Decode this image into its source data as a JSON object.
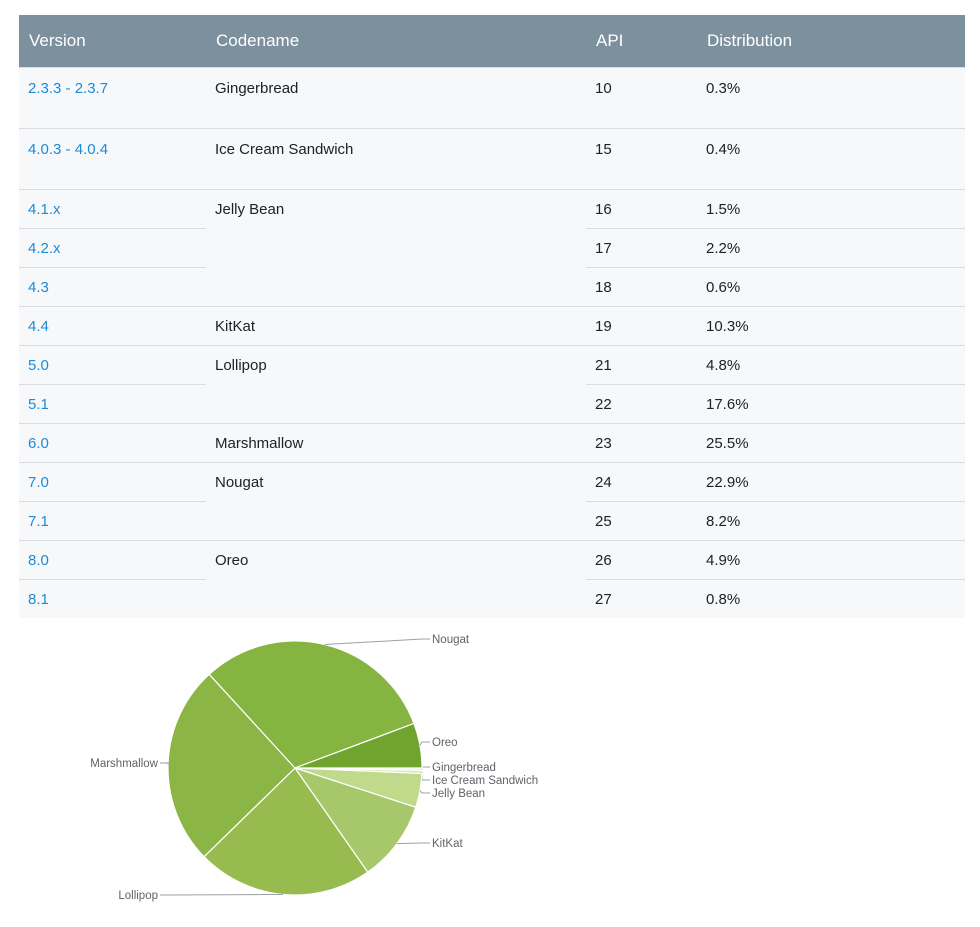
{
  "table": {
    "headers": [
      "Version",
      "Codename",
      "API",
      "Distribution"
    ],
    "groups": [
      {
        "codename": "Gingerbread",
        "rows": [
          {
            "version": "2.3.3 - 2.3.7",
            "api": "10",
            "distribution": "0.3%"
          }
        ]
      },
      {
        "codename": "Ice Cream Sandwich",
        "rows": [
          {
            "version": "4.0.3 - 4.0.4",
            "api": "15",
            "distribution": "0.4%"
          }
        ]
      },
      {
        "codename": "Jelly Bean",
        "rows": [
          {
            "version": "4.1.x",
            "api": "16",
            "distribution": "1.5%"
          },
          {
            "version": "4.2.x",
            "api": "17",
            "distribution": "2.2%"
          },
          {
            "version": "4.3",
            "api": "18",
            "distribution": "0.6%"
          }
        ]
      },
      {
        "codename": "KitKat",
        "rows": [
          {
            "version": "4.4",
            "api": "19",
            "distribution": "10.3%"
          }
        ]
      },
      {
        "codename": "Lollipop",
        "rows": [
          {
            "version": "5.0",
            "api": "21",
            "distribution": "4.8%"
          },
          {
            "version": "5.1",
            "api": "22",
            "distribution": "17.6%"
          }
        ]
      },
      {
        "codename": "Marshmallow",
        "rows": [
          {
            "version": "6.0",
            "api": "23",
            "distribution": "25.5%"
          }
        ]
      },
      {
        "codename": "Nougat",
        "rows": [
          {
            "version": "7.0",
            "api": "24",
            "distribution": "22.9%"
          },
          {
            "version": "7.1",
            "api": "25",
            "distribution": "8.2%"
          }
        ]
      },
      {
        "codename": "Oreo",
        "rows": [
          {
            "version": "8.0",
            "api": "26",
            "distribution": "4.9%"
          },
          {
            "version": "8.1",
            "api": "27",
            "distribution": "0.8%"
          }
        ]
      }
    ]
  },
  "colors": {
    "header_bg": "#7d909d",
    "header_text": "#ffffff",
    "row_bg": "#f7f8fa",
    "link": "#1a8bd8",
    "pie_outline": "#ffffff",
    "leader_line": "#9aa0a6"
  },
  "chart_data": {
    "type": "pie",
    "slices": [
      {
        "label": "Gingerbread",
        "value": 0.3,
        "color": "#e6f1cf"
      },
      {
        "label": "Ice Cream Sandwich",
        "value": 0.4,
        "color": "#d8e9b4"
      },
      {
        "label": "Jelly Bean",
        "value": 4.3,
        "color": "#bfda8a"
      },
      {
        "label": "KitKat",
        "value": 10.3,
        "color": "#a7c86a"
      },
      {
        "label": "Lollipop",
        "value": 22.4,
        "color": "#97bb4f"
      },
      {
        "label": "Marshmallow",
        "value": 25.5,
        "color": "#8bb545"
      },
      {
        "label": "Nougat",
        "value": 31.1,
        "color": "#85b440"
      },
      {
        "label": "Oreo",
        "value": 5.7,
        "color": "#6fa42e"
      }
    ]
  }
}
